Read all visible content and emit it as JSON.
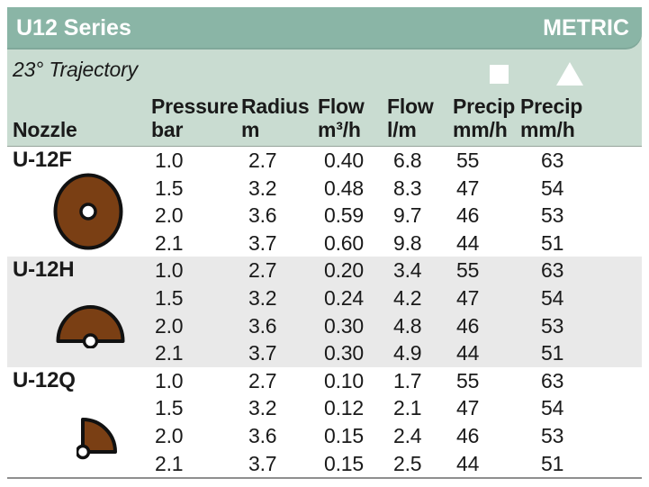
{
  "header": {
    "title": "U12 Series",
    "units_label": "METRIC",
    "trajectory": "23° Trajectory"
  },
  "columns": [
    {
      "id": "nozzle",
      "line1": "",
      "line2": "Nozzle",
      "icon": null
    },
    {
      "id": "pressure",
      "line1": "Pressure",
      "line2": "bar",
      "icon": null
    },
    {
      "id": "radius",
      "line1": "Radius",
      "line2": "m",
      "icon": null
    },
    {
      "id": "flow-m3h",
      "line1": "Flow",
      "line2": "m³/h",
      "icon": null
    },
    {
      "id": "flow-lm",
      "line1": "Flow",
      "line2": "l/m",
      "icon": null
    },
    {
      "id": "precip-square",
      "line1": "Precip",
      "line2": "mm/h",
      "icon": "square"
    },
    {
      "id": "precip-triangle",
      "line1": "Precip",
      "line2": "mm/h",
      "icon": "triangle"
    }
  ],
  "groups": [
    {
      "nozzle": "U-12F",
      "pattern": "full-circle",
      "shaded": false,
      "rows": [
        [
          "1.0",
          "2.7",
          "0.40",
          "6.8",
          "55",
          "63"
        ],
        [
          "1.5",
          "3.2",
          "0.48",
          "8.3",
          "47",
          "54"
        ],
        [
          "2.0",
          "3.6",
          "0.59",
          "9.7",
          "46",
          "53"
        ],
        [
          "2.1",
          "3.7",
          "0.60",
          "9.8",
          "44",
          "51"
        ]
      ]
    },
    {
      "nozzle": "U-12H",
      "pattern": "half-circle",
      "shaded": true,
      "rows": [
        [
          "1.0",
          "2.7",
          "0.20",
          "3.4",
          "55",
          "63"
        ],
        [
          "1.5",
          "3.2",
          "0.24",
          "4.2",
          "47",
          "54"
        ],
        [
          "2.0",
          "3.6",
          "0.30",
          "4.8",
          "46",
          "53"
        ],
        [
          "2.1",
          "3.7",
          "0.30",
          "4.9",
          "44",
          "51"
        ]
      ]
    },
    {
      "nozzle": "U-12Q",
      "pattern": "quarter-circle",
      "shaded": false,
      "rows": [
        [
          "1.0",
          "2.7",
          "0.10",
          "1.7",
          "55",
          "63"
        ],
        [
          "1.5",
          "3.2",
          "0.12",
          "2.1",
          "47",
          "54"
        ],
        [
          "2.0",
          "3.6",
          "0.15",
          "2.4",
          "46",
          "53"
        ],
        [
          "2.1",
          "3.7",
          "0.15",
          "2.5",
          "44",
          "51"
        ]
      ]
    }
  ],
  "colors": {
    "bar_teal": "#8AB5A6",
    "header_green": "#C9DCD1",
    "shaded_row": "#E9E9E9",
    "nozzle_brown": "#7A3F14",
    "text": "#1A1A1A"
  }
}
